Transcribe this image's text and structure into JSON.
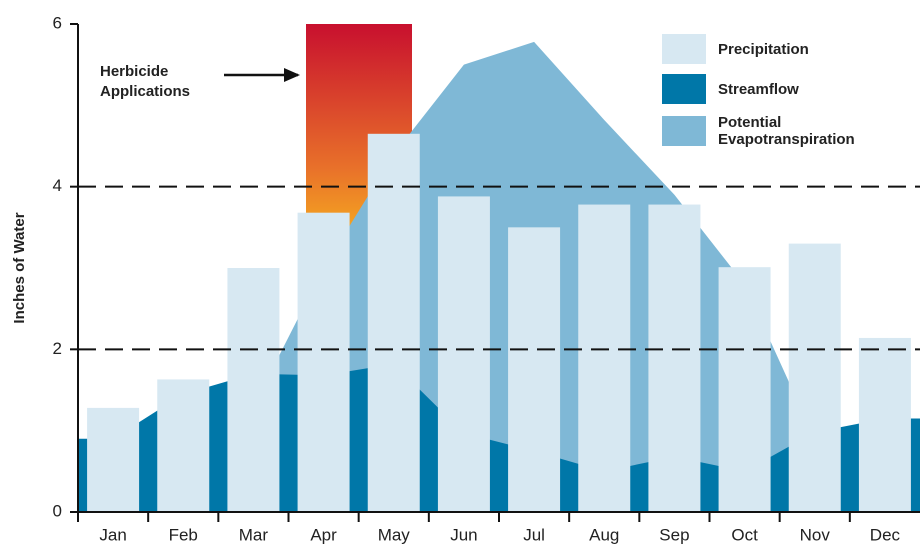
{
  "chart_data": {
    "type": "bar",
    "y_label": "Inches of Water",
    "annotation": "Herbicide Applications",
    "categories": [
      "Jan",
      "Feb",
      "Mar",
      "Apr",
      "May",
      "Jun",
      "Jul",
      "Aug",
      "Sep",
      "Oct",
      "Nov",
      "Dec"
    ],
    "series": [
      {
        "name": "Precipitation",
        "color": "#d7e8f2",
        "kind": "bar",
        "values": [
          1.28,
          1.63,
          3.0,
          3.68,
          4.65,
          3.88,
          3.5,
          3.78,
          3.78,
          3.01,
          3.3,
          2.14
        ]
      },
      {
        "name": "Streamflow",
        "color": "#0077a8",
        "kind": "area",
        "values": [
          0.9,
          1.45,
          1.7,
          1.68,
          1.82,
          0.97,
          0.75,
          0.5,
          0.68,
          0.5,
          0.98,
          1.15
        ]
      },
      {
        "name": "Potential Evapotranspiration",
        "color": "#7fb8d6",
        "kind": "area",
        "values": [
          0.5,
          0.9,
          1.3,
          3.0,
          4.4,
          5.5,
          5.78,
          4.82,
          3.9,
          2.8,
          0.9,
          0.6
        ]
      }
    ],
    "ylim": [
      0,
      6
    ],
    "yticks": [
      0,
      2,
      4,
      6
    ],
    "grid": true
  }
}
